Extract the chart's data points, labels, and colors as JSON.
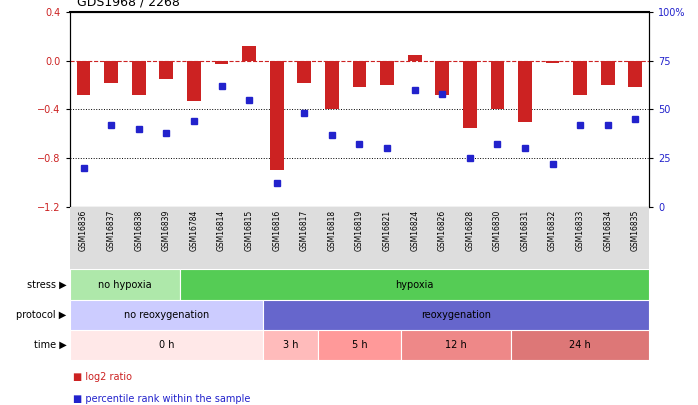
{
  "title": "GDS1968 / 2268",
  "samples": [
    "GSM16836",
    "GSM16837",
    "GSM16838",
    "GSM16839",
    "GSM16784",
    "GSM16814",
    "GSM16815",
    "GSM16816",
    "GSM16817",
    "GSM16818",
    "GSM16819",
    "GSM16821",
    "GSM16824",
    "GSM16826",
    "GSM16828",
    "GSM16830",
    "GSM16831",
    "GSM16832",
    "GSM16833",
    "GSM16834",
    "GSM16835"
  ],
  "log2_ratio": [
    -0.28,
    -0.18,
    -0.28,
    -0.15,
    -0.33,
    -0.03,
    0.12,
    -0.9,
    -0.18,
    -0.4,
    -0.22,
    -0.2,
    0.05,
    -0.28,
    -0.55,
    -0.4,
    -0.5,
    -0.02,
    -0.28,
    -0.2,
    -0.22
  ],
  "percentile": [
    20,
    42,
    40,
    38,
    44,
    62,
    55,
    12,
    48,
    37,
    32,
    30,
    60,
    58,
    25,
    32,
    30,
    22,
    42,
    42,
    45
  ],
  "bar_color": "#cc2222",
  "dot_color": "#2222cc",
  "ylim_left": [
    -1.2,
    0.4
  ],
  "ylim_right": [
    0,
    100
  ],
  "yticks_left": [
    0.4,
    0.0,
    -0.4,
    -0.8,
    -1.2
  ],
  "yticks_right": [
    100,
    75,
    50,
    25,
    0
  ],
  "ytick_right_labels": [
    "100%",
    "75",
    "50",
    "25",
    "0"
  ],
  "hline_dashed": 0.0,
  "hlines_dotted": [
    -0.4,
    -0.8
  ],
  "stress_groups": [
    {
      "label": "no hypoxia",
      "start": 0,
      "end": 4,
      "color": "#aee8aa"
    },
    {
      "label": "hypoxia",
      "start": 4,
      "end": 21,
      "color": "#55cc55"
    }
  ],
  "protocol_groups": [
    {
      "label": "no reoxygenation",
      "start": 0,
      "end": 7,
      "color": "#ccccff"
    },
    {
      "label": "reoxygenation",
      "start": 7,
      "end": 21,
      "color": "#6666cc"
    }
  ],
  "time_groups": [
    {
      "label": "0 h",
      "start": 0,
      "end": 7,
      "color": "#ffe8e8"
    },
    {
      "label": "3 h",
      "start": 7,
      "end": 9,
      "color": "#ffbbbb"
    },
    {
      "label": "5 h",
      "start": 9,
      "end": 12,
      "color": "#ff9999"
    },
    {
      "label": "12 h",
      "start": 12,
      "end": 16,
      "color": "#ee8888"
    },
    {
      "label": "24 h",
      "start": 16,
      "end": 21,
      "color": "#dd7777"
    }
  ],
  "legend_items": [
    {
      "label": "log2 ratio",
      "color": "#cc2222"
    },
    {
      "label": "percentile rank within the sample",
      "color": "#2222cc"
    }
  ],
  "row_labels": [
    "stress",
    "protocol",
    "time"
  ],
  "ticklabel_color": "#555555",
  "background_color": "#ffffff"
}
